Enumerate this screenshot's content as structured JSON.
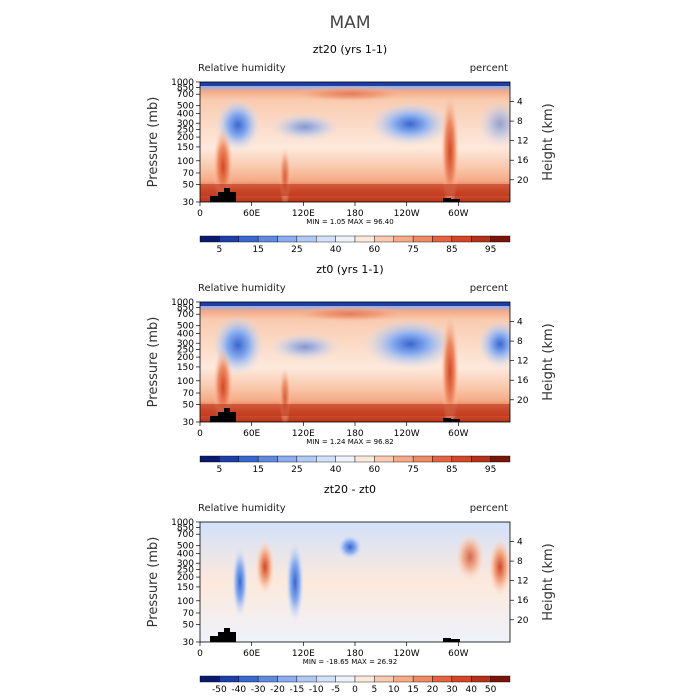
{
  "figure_title": "MAM",
  "chart_data": [
    {
      "type": "heatmap",
      "title": "zt20 (yrs 1-1)",
      "left_label": "Relative humidity",
      "right_label": "percent",
      "ylabel": "Pressure (mb)",
      "ylabel_right": "Height (km)",
      "x_ticks": [
        "0",
        "60E",
        "120E",
        "180",
        "120W",
        "60W"
      ],
      "y_ticks_pressure": [
        "1000",
        "850",
        "700",
        "500",
        "400",
        "300",
        "250",
        "200",
        "150",
        "100",
        "70",
        "50",
        "30"
      ],
      "y_ticks_height": [
        "20",
        "16",
        "12",
        "8",
        "4"
      ],
      "min_text": "MIN =    1.05   MAX =   96.40",
      "colorbar_labels": [
        "5",
        "15",
        "25",
        "40",
        "60",
        "75",
        "85",
        "95"
      ],
      "colorbar_colors": [
        "#0a1a6e",
        "#1f3fa8",
        "#3a66cf",
        "#5f8ae0",
        "#8aaef0",
        "#b0c9f5",
        "#d2e1fa",
        "#eef2fb",
        "#fde9dc",
        "#f9cbb0",
        "#f5ab88",
        "#ef8a62",
        "#e5633f",
        "#d24726",
        "#b53218",
        "#7a1508"
      ],
      "range": [
        1.05,
        96.4
      ]
    },
    {
      "type": "heatmap",
      "title": "zt0 (yrs 1-1)",
      "left_label": "Relative humidity",
      "right_label": "percent",
      "ylabel": "Pressure (mb)",
      "ylabel_right": "Height (km)",
      "x_ticks": [
        "0",
        "60E",
        "120E",
        "180",
        "120W",
        "60W"
      ],
      "y_ticks_pressure": [
        "1000",
        "850",
        "700",
        "500",
        "400",
        "300",
        "250",
        "200",
        "150",
        "100",
        "70",
        "50",
        "30"
      ],
      "y_ticks_height": [
        "20",
        "16",
        "12",
        "8",
        "4"
      ],
      "min_text": "MIN =    1.24   MAX =   96.82",
      "colorbar_labels": [
        "5",
        "15",
        "25",
        "40",
        "60",
        "75",
        "85",
        "95"
      ],
      "colorbar_colors": [
        "#0a1a6e",
        "#1f3fa8",
        "#3a66cf",
        "#5f8ae0",
        "#8aaef0",
        "#b0c9f5",
        "#d2e1fa",
        "#eef2fb",
        "#fde9dc",
        "#f9cbb0",
        "#f5ab88",
        "#ef8a62",
        "#e5633f",
        "#d24726",
        "#b53218",
        "#7a1508"
      ],
      "range": [
        1.24,
        96.82
      ]
    },
    {
      "type": "heatmap",
      "title": "zt20 - zt0",
      "left_label": "Relative humidity",
      "right_label": "percent",
      "ylabel": "Pressure (mb)",
      "ylabel_right": "Height (km)",
      "x_ticks": [
        "0",
        "60E",
        "120E",
        "180",
        "120W",
        "60W"
      ],
      "y_ticks_pressure": [
        "1000",
        "850",
        "700",
        "500",
        "400",
        "300",
        "250",
        "200",
        "150",
        "100",
        "70",
        "50",
        "30"
      ],
      "y_ticks_height": [
        "20",
        "16",
        "12",
        "8",
        "4"
      ],
      "min_text": "MIN =  -18.65   MAX =   26.92",
      "colorbar_labels": [
        "-50",
        "-40",
        "-30",
        "-20",
        "-15",
        "-10",
        "-5",
        "0",
        "5",
        "10",
        "15",
        "20",
        "30",
        "40",
        "50"
      ],
      "colorbar_colors": [
        "#0a1a6e",
        "#1f3fa8",
        "#3a66cf",
        "#5f8ae0",
        "#8aaef0",
        "#b0c9f5",
        "#d2e1fa",
        "#eef2fb",
        "#fde9dc",
        "#f9cbb0",
        "#f5ab88",
        "#ef8a62",
        "#e5633f",
        "#d24726",
        "#b53218",
        "#7a1508"
      ],
      "range": [
        -18.65,
        26.92
      ]
    }
  ]
}
